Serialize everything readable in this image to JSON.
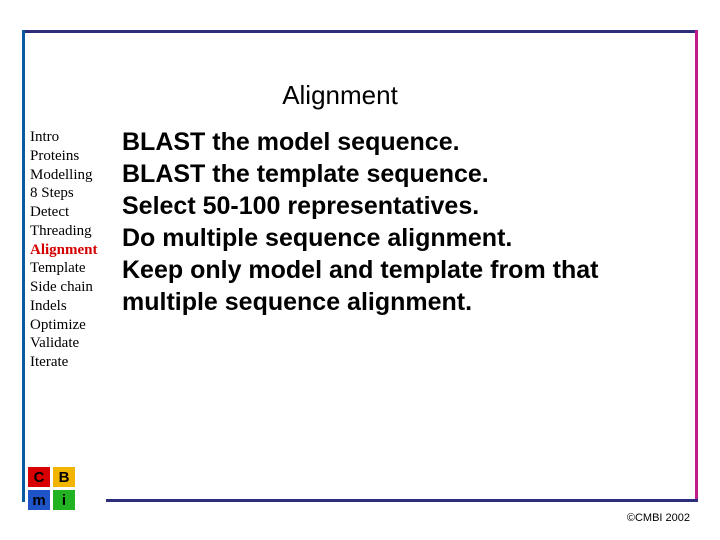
{
  "colors": {
    "rule": "#2d2d7a",
    "left_rule": "#0b5aa0",
    "right_rule": "#c01a8c",
    "active_nav": "#d40000"
  },
  "title": {
    "text": "Alignment",
    "fontsize": 26
  },
  "nav": {
    "fontsize": 15,
    "items": [
      {
        "label": "Intro",
        "active": false
      },
      {
        "label": "Proteins",
        "active": false
      },
      {
        "label": "Modelling",
        "active": false
      },
      {
        "label": "8 Steps",
        "active": false
      },
      {
        "label": "Detect",
        "active": false
      },
      {
        "label": "Threading",
        "active": false
      },
      {
        "label": "Alignment",
        "active": true
      },
      {
        "label": "Template",
        "active": false
      },
      {
        "label": "Side chain",
        "active": false
      },
      {
        "label": "Indels",
        "active": false
      },
      {
        "label": "Optimize",
        "active": false
      },
      {
        "label": "Validate",
        "active": false
      },
      {
        "label": "Iterate",
        "active": false
      }
    ]
  },
  "body": {
    "fontsize": 25,
    "lines": [
      "BLAST the model sequence.",
      "BLAST the template sequence.",
      "Select 50-100 representatives.",
      "Do multiple sequence alignment.",
      "Keep only model and template from that multiple sequence alignment."
    ]
  },
  "logo": {
    "cells": [
      {
        "letter": "C",
        "bg": "#d80000"
      },
      {
        "letter": "B",
        "bg": "#f1b400"
      },
      {
        "letter": "m",
        "bg": "#1f53c8"
      },
      {
        "letter": "i",
        "bg": "#21b321"
      }
    ]
  },
  "copyright": "©CMBI 2002"
}
